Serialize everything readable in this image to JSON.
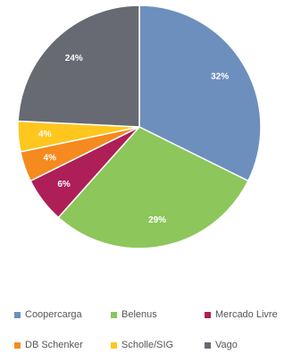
{
  "chart_data": {
    "type": "pie",
    "title": "",
    "categories": [
      "Coopercarga",
      "Belenus",
      "Mercado Livre",
      "DB Schenker",
      "Scholle/SIG",
      "Vago"
    ],
    "values": [
      32,
      29,
      6,
      4,
      4,
      24
    ],
    "labels": [
      "32%",
      "29%",
      "6%",
      "4%",
      "4%",
      "24%"
    ],
    "colors": [
      "#6d8fbd",
      "#8dc65b",
      "#ad1f56",
      "#f58a1f",
      "#ffc61e",
      "#676a72"
    ],
    "start_angle_deg": 0,
    "direction": "clockwise",
    "legend_position": "bottom"
  }
}
